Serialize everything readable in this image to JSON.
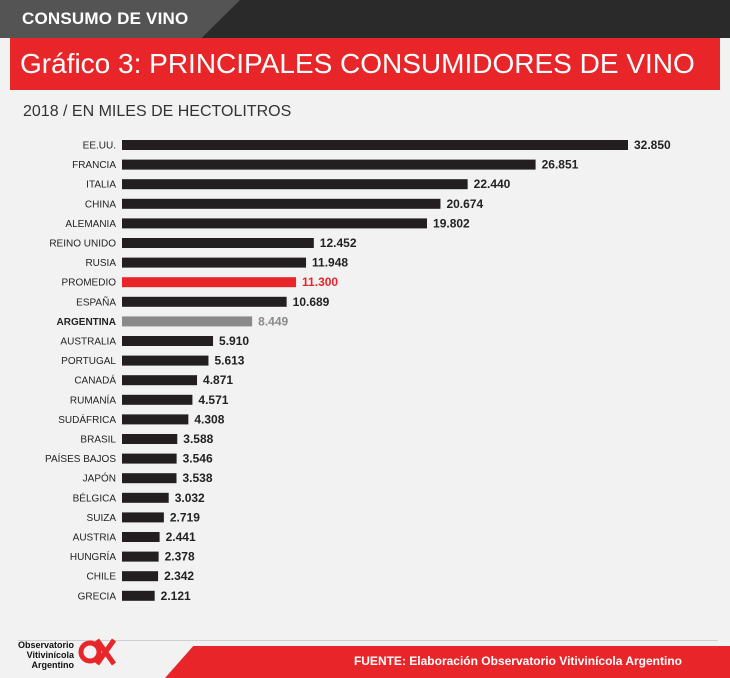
{
  "header": {
    "section": "CONSUMO DE VINO",
    "title": "Gráfico 3: PRINCIPALES CONSUMIDORES DE VINO",
    "subtitle": "2018 / EN MILES DE HECTOLITROS"
  },
  "footer": {
    "source": "FUENTE: Elaboración Observatorio Vitivinícola Argentino",
    "logo_lines": [
      "Observatorio",
      "Vitivinícola",
      "Argentino"
    ]
  },
  "colors": {
    "bar_default": "#231f20",
    "bar_highlight": "#e8262a",
    "bar_argentina": "#8a8a8a",
    "accent": "#e8262a"
  },
  "chart_data": {
    "type": "bar",
    "orientation": "horizontal",
    "title": "Gráfico 3: PRINCIPALES CONSUMIDORES DE VINO",
    "subtitle": "2018 / EN MILES DE HECTOLITROS",
    "categories": [
      "EE.UU.",
      "FRANCIA",
      "ITALIA",
      "CHINA",
      "ALEMANIA",
      "REINO UNIDO",
      "RUSIA",
      "PROMEDIO",
      "ESPAÑA",
      "ARGENTINA",
      "AUSTRALIA",
      "PORTUGAL",
      "CANADÁ",
      "RUMANÍA",
      "SUDÁFRICA",
      "BRASIL",
      "PAÍSES BAJOS",
      "JAPÓN",
      "BÉLGICA",
      "SUIZA",
      "AUSTRIA",
      "HUNGRÍA",
      "CHILE",
      "GRECIA"
    ],
    "values": [
      32850,
      26851,
      22440,
      20674,
      19802,
      12452,
      11948,
      11300,
      10689,
      8449,
      5910,
      5613,
      4871,
      4571,
      4308,
      3588,
      3546,
      3538,
      3032,
      2719,
      2441,
      2378,
      2342,
      2121
    ],
    "value_labels": [
      "32.850",
      "26.851",
      "22.440",
      "20.674",
      "19.802",
      "12.452",
      "11.948",
      "11.300",
      "10.689",
      "8.449",
      "5.910",
      "5.613",
      "4.871",
      "4.571",
      "4.308",
      "3.588",
      "3.546",
      "3.538",
      "3.032",
      "2.719",
      "2.441",
      "2.378",
      "2.342",
      "2.121"
    ],
    "highlight": {
      "PROMEDIO": "bar_highlight",
      "ARGENTINA": "bar_argentina"
    },
    "xlim": [
      0,
      32850
    ],
    "grid": false,
    "legend": "none"
  }
}
